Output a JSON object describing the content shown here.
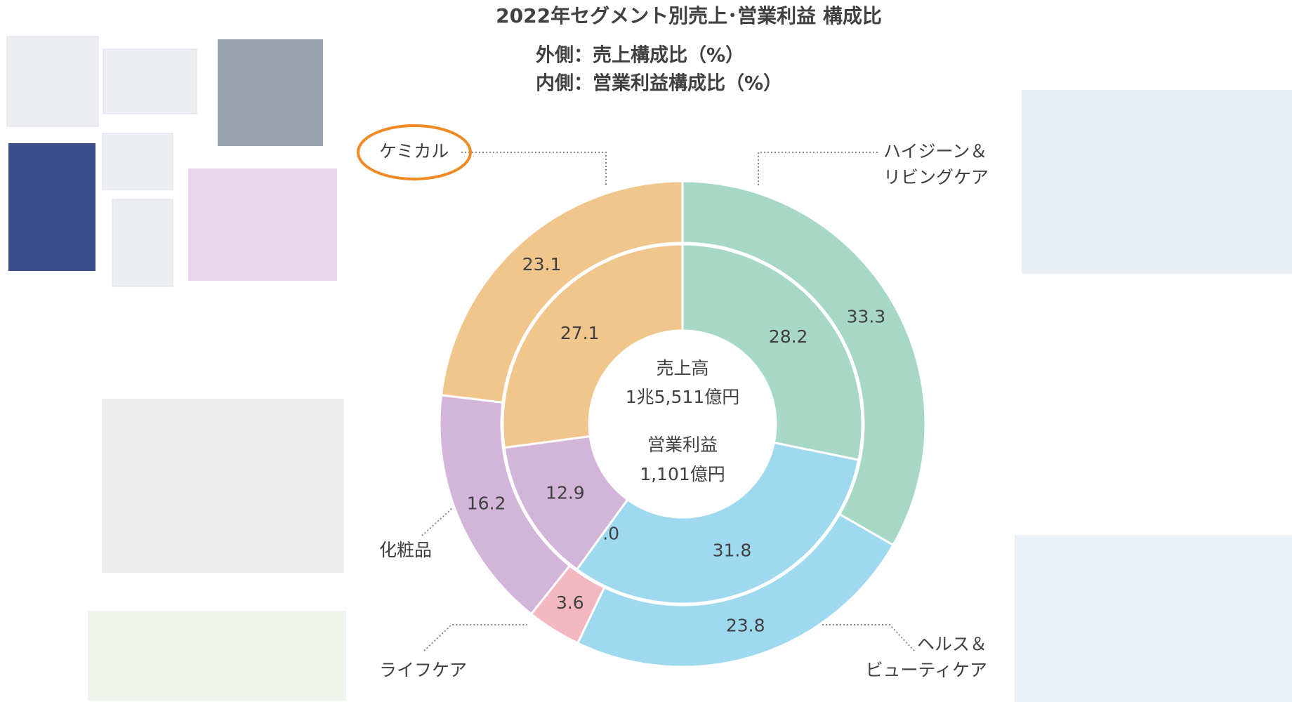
{
  "chart_data": {
    "type": "donut",
    "title": "2022年セグメント別売上･営業利益 構成比",
    "categories": [
      [
        "ハイジーン＆",
        "リビングケア"
      ],
      [
        "ヘルス＆",
        "ビューティケア"
      ],
      [
        "ライフケア"
      ],
      [
        "化粧品"
      ],
      [
        "ケミカル"
      ]
    ],
    "colors": [
      "#a7d8c5",
      "#9fd9ef",
      "#f3b7c1",
      "#d3b5d9",
      "#f0c68c"
    ],
    "series": [
      {
        "name": "外側：売上構成比（%）",
        "values": [
          33.3,
          23.8,
          3.6,
          16.2,
          23.1
        ]
      },
      {
        "name": "内側：営業利益構成比（%）",
        "values": [
          28.2,
          31.8,
          0,
          12.9,
          27.1
        ],
        "value_labels": [
          "28.2",
          "31.8",
          "-0.0",
          "12.9",
          "27.1"
        ]
      }
    ],
    "center_labels": [
      "売上高",
      "1兆5,511億円",
      "営業利益",
      "1,101億円"
    ]
  }
}
